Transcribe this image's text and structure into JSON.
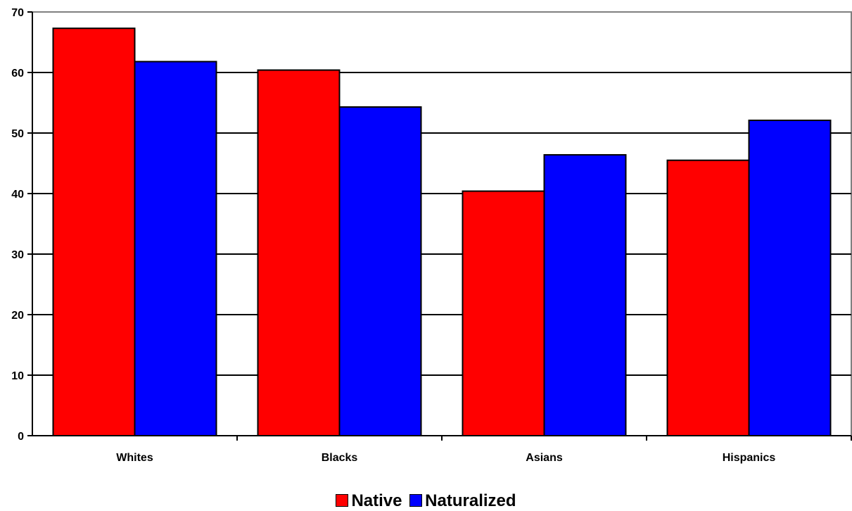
{
  "chart_data": {
    "type": "bar",
    "categories": [
      "Whites",
      "Blacks",
      "Asians",
      "Hispanics"
    ],
    "series": [
      {
        "name": "Native",
        "color": "#ff0000",
        "values": [
          67.3,
          60.4,
          40.4,
          45.5
        ]
      },
      {
        "name": "Naturalized",
        "color": "#0000ff",
        "values": [
          61.8,
          54.3,
          46.4,
          52.1
        ]
      }
    ],
    "yticks": [
      "0",
      "10",
      "20",
      "30",
      "40",
      "50",
      "60",
      "70"
    ],
    "ylim": [
      0,
      70
    ],
    "grid": true,
    "legend_position": "bottom"
  }
}
